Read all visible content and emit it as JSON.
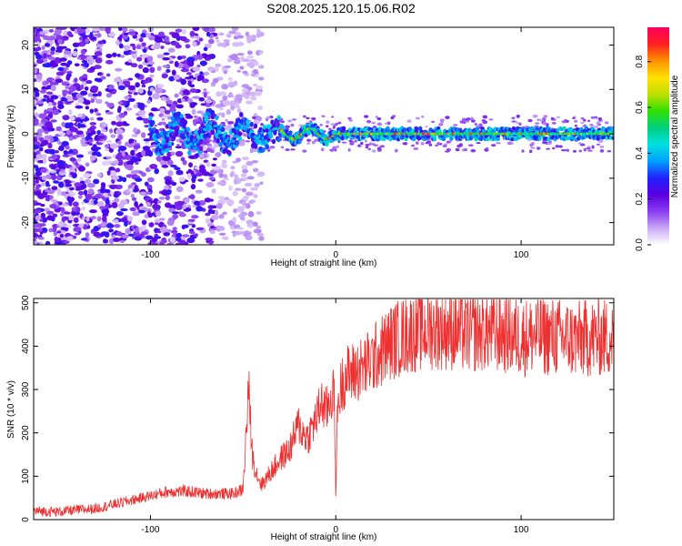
{
  "title": "S208.2025.120.15.06.R02",
  "chart_data": [
    {
      "type": "heatmap",
      "xlabel": "Height of straight line (km)",
      "ylabel": "Frequency (Hz)",
      "xlim": [
        -163,
        150
      ],
      "ylim": [
        -25,
        24
      ],
      "xticks": [
        "-100",
        "0",
        "100"
      ],
      "xtick_values": [
        -100,
        0,
        100
      ],
      "yticks": [
        "-20",
        "-10",
        "0",
        "10",
        "20"
      ],
      "ytick_values": [
        -20,
        -10,
        0,
        10,
        20
      ],
      "colorbar": {
        "label": "Normalized spectral amplitude",
        "ticks": [
          "0.0",
          "0.2",
          "0.4",
          "0.6",
          "0.8"
        ],
        "tick_values": [
          0.0,
          0.2,
          0.4,
          0.6,
          0.8
        ],
        "range": [
          0,
          0.95
        ],
        "colormap": [
          "#ffffff",
          "#c9a8f5",
          "#8a3cf0",
          "#5a00e0",
          "#2020ff",
          "#00a0ff",
          "#00e0e0",
          "#00d080",
          "#30e000",
          "#c0e000",
          "#ffe000",
          "#ff9000",
          "#ff2020",
          "#ff0060"
        ]
      },
      "signal_line_freq_hz": 0,
      "description_regions": {
        "noise_region_x": [
          -163,
          -65
        ],
        "signal_start_x": -100,
        "strong_signal_from_x": -30
      }
    },
    {
      "type": "line",
      "xlabel": "Height of straight line (km)",
      "ylabel": "SNR (10 * v/v)",
      "xlim": [
        -163,
        150
      ],
      "ylim": [
        0,
        510
      ],
      "xticks": [
        "-100",
        "0",
        "100"
      ],
      "xtick_values": [
        -100,
        0,
        100
      ],
      "yticks": [
        "0",
        "100",
        "200",
        "300",
        "400",
        "500"
      ],
      "ytick_values": [
        0,
        100,
        200,
        300,
        400,
        500
      ],
      "color": "#ee3030",
      "series": [
        {
          "x": [
            -163,
            -150,
            -140,
            -130,
            -120,
            -110,
            -100,
            -90,
            -80,
            -70,
            -60,
            -55,
            -50,
            -47,
            -45,
            -43,
            -40,
            -35,
            -30,
            -25,
            -20,
            -18,
            -15,
            -10,
            -8,
            -5,
            -3,
            -1,
            0,
            1,
            3,
            5,
            10,
            15,
            20,
            25,
            30,
            40,
            50,
            60,
            70,
            80,
            90,
            100,
            110,
            120,
            130,
            140,
            150
          ],
          "values": [
            20,
            18,
            22,
            25,
            35,
            45,
            55,
            65,
            65,
            60,
            60,
            60,
            70,
            300,
            150,
            110,
            80,
            110,
            140,
            160,
            220,
            200,
            190,
            240,
            270,
            250,
            280,
            300,
            60,
            260,
            310,
            330,
            340,
            350,
            370,
            390,
            410,
            430,
            440,
            440,
            430,
            435,
            430,
            420,
            425,
            420,
            415,
            420,
            420
          ]
        }
      ]
    }
  ]
}
